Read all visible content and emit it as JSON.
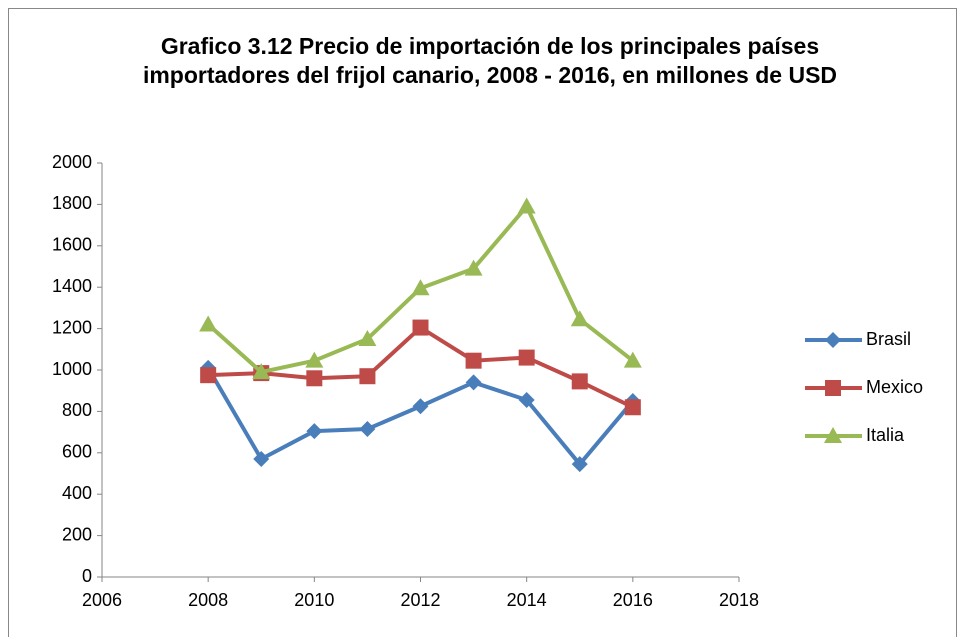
{
  "chart_data": {
    "type": "line",
    "title": "Grafico 3.12 Precio de importación de los principales países importadores del frijol canario, 2008 - 2016, en millones de USD",
    "x": [
      2008,
      2009,
      2010,
      2011,
      2012,
      2013,
      2014,
      2015,
      2016
    ],
    "xlim": [
      2006,
      2018
    ],
    "xticks": [
      2006,
      2008,
      2010,
      2012,
      2014,
      2016,
      2018
    ],
    "ylim": [
      0,
      2000
    ],
    "yticks": [
      0,
      200,
      400,
      600,
      800,
      1000,
      1200,
      1400,
      1600,
      1800,
      2000
    ],
    "grid": false,
    "legend": "right",
    "series": [
      {
        "name": "Brasil",
        "color": "#4a7ebb",
        "marker": "diamond",
        "values": [
          1010,
          570,
          705,
          715,
          825,
          940,
          855,
          545,
          850
        ]
      },
      {
        "name": "Mexico",
        "color": "#be4b48",
        "marker": "square",
        "values": [
          975,
          985,
          960,
          970,
          1205,
          1045,
          1060,
          945,
          820
        ]
      },
      {
        "name": "Italia",
        "color": "#98b954",
        "marker": "triangle",
        "values": [
          1220,
          990,
          1045,
          1150,
          1395,
          1490,
          1790,
          1245,
          1045
        ]
      }
    ]
  }
}
